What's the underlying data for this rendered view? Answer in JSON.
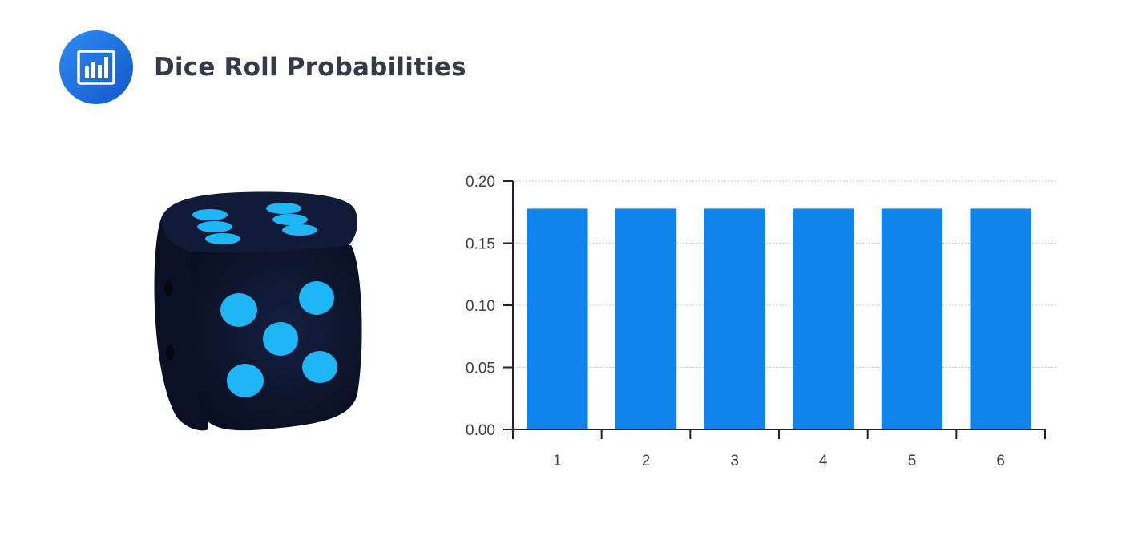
{
  "header": {
    "title": "Dice Roll Probabilities",
    "icon": "bar-chart-icon",
    "icon_color": "#1a73e8"
  },
  "illustration": {
    "icon": "dice-icon",
    "body_color": "#0d1630",
    "pip_color": "#1fb6f7"
  },
  "chart_data": {
    "type": "bar",
    "categories": [
      "1",
      "2",
      "3",
      "4",
      "5",
      "6"
    ],
    "values": [
      0.1778,
      0.1778,
      0.1778,
      0.1778,
      0.1778,
      0.1778
    ],
    "ylim": [
      0,
      0.2
    ],
    "yticks": [
      "0.00",
      "0.05",
      "0.10",
      "0.15",
      "0.20"
    ],
    "ytick_values": [
      0,
      0.05,
      0.1,
      0.15,
      0.2
    ],
    "bar_color": "#0f84ea",
    "grid": true,
    "legend": "none"
  }
}
